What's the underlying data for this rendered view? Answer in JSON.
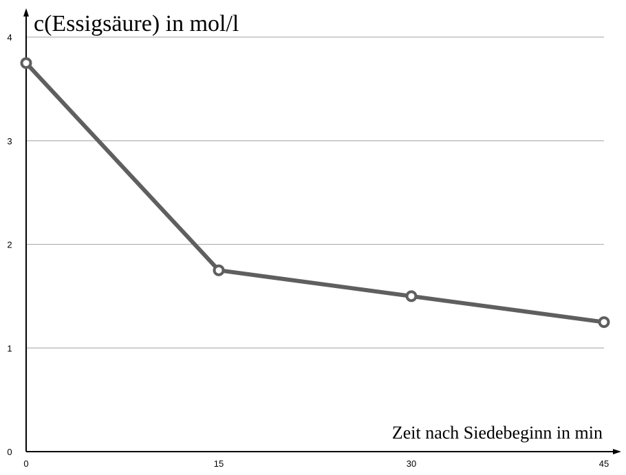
{
  "chart_data": {
    "type": "line",
    "ylabel": "c(Essigsäure) in mol/l",
    "xlabel": "Zeit nach Siedebeginn in min",
    "x": [
      0,
      15,
      30,
      45
    ],
    "y": [
      3.75,
      1.75,
      1.5,
      1.25
    ],
    "x_ticks": [
      "0",
      "15",
      "30",
      "45"
    ],
    "y_ticks": [
      "0",
      "1",
      "2",
      "3",
      "4"
    ],
    "xlim": [
      0,
      45
    ],
    "ylim": [
      0,
      4
    ],
    "grid": true,
    "series_color": "#5f5f5f",
    "grid_color": "#b3b3b3",
    "marker": "hollow-circle"
  }
}
